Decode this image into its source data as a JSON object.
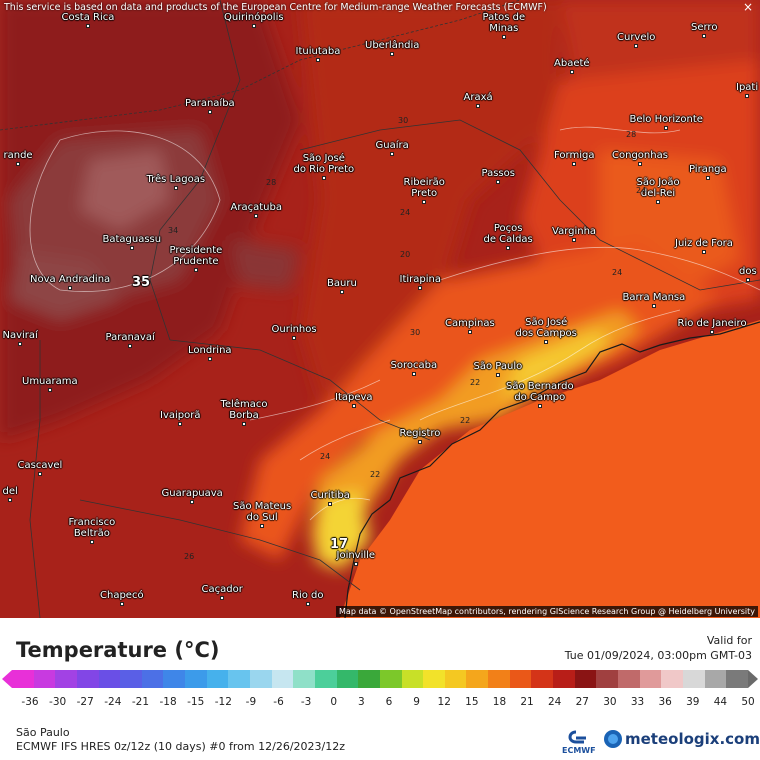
{
  "map": {
    "disclaimer": "This service is based on data and products of the European Centre for Medium-range Weather Forecasts (ECMWF)",
    "close_glyph": "×",
    "attribution": "Map data © OpenStreetMap contributors, rendering GIScience Research Group @ Heidelberg University",
    "cities": [
      {
        "name": "Costa Rica"
      },
      {
        "name": "Quirinópolis"
      },
      {
        "name": "Patos de\nMinas"
      },
      {
        "name": "Curvelo"
      },
      {
        "name": "Serro"
      },
      {
        "name": "Uberlândia"
      },
      {
        "name": "Ituiutaba"
      },
      {
        "name": "Abaeté"
      },
      {
        "name": "Ipati"
      },
      {
        "name": "Paranaíba"
      },
      {
        "name": "Araxá"
      },
      {
        "name": "Belo Horizonte"
      },
      {
        "name": "Guaíra"
      },
      {
        "name": "Formiga"
      },
      {
        "name": "Congonhas"
      },
      {
        "name": "São José\ndo Rio Preto"
      },
      {
        "name": "Passos"
      },
      {
        "name": "Piranga"
      },
      {
        "name": "Três Lagoas"
      },
      {
        "name": "Ribeirão\nPreto"
      },
      {
        "name": "São João\ndel-Rei"
      },
      {
        "name": "Araçatuba"
      },
      {
        "name": "Varginha"
      },
      {
        "name": "Poços\nde Caldas"
      },
      {
        "name": "Juiz de Fora"
      },
      {
        "name": "Bataguassu"
      },
      {
        "name": "Presidente\nPrudente"
      },
      {
        "name": "Nova Andradina"
      },
      {
        "name": "Bauru"
      },
      {
        "name": "Itirapina"
      },
      {
        "name": "Barra Mansa"
      },
      {
        "name": "Campinas"
      },
      {
        "name": "São José\ndos Campos"
      },
      {
        "name": "Rio de Janeiro"
      },
      {
        "name": "Ourinhos"
      },
      {
        "name": "Naviraí"
      },
      {
        "name": "Paranavaí"
      },
      {
        "name": "Londrina"
      },
      {
        "name": "Sorocaba"
      },
      {
        "name": "São Paulo"
      },
      {
        "name": "São Bernardo\ndo Campo"
      },
      {
        "name": "Umuarama"
      },
      {
        "name": "Itapeva"
      },
      {
        "name": "Ivaiporã"
      },
      {
        "name": "Telêmaco\nBorba"
      },
      {
        "name": "Registro"
      },
      {
        "name": "Cascavel"
      },
      {
        "name": "Curitiba"
      },
      {
        "name": "Guarapuava"
      },
      {
        "name": "São Mateus\ndo Sul"
      },
      {
        "name": "Francisco\nBeltrão"
      },
      {
        "name": "Joinville"
      },
      {
        "name": "Caçador"
      },
      {
        "name": "Chapecó"
      },
      {
        "name": "Rio do"
      },
      {
        "name": "rande"
      },
      {
        "name": "del"
      },
      {
        "name": "dos"
      }
    ],
    "temp_labels": [
      {
        "value": "35"
      },
      {
        "value": "17"
      }
    ],
    "contour_labels": [
      "34",
      "30",
      "24",
      "28",
      "24",
      "20",
      "22",
      "22",
      "24",
      "24",
      "28",
      "22",
      "26",
      "30"
    ]
  },
  "footer": {
    "title": "Temperature (°C)",
    "valid_for": "Valid for",
    "valid_date": "Tue 01/09/2024, 03:00pm GMT-03",
    "scale_ticks": [
      "-36",
      "-30",
      "-27",
      "-24",
      "-21",
      "-18",
      "-15",
      "-12",
      "-9",
      "-6",
      "-3",
      "0",
      "3",
      "6",
      "9",
      "12",
      "15",
      "18",
      "21",
      "24",
      "27",
      "30",
      "33",
      "36",
      "39",
      "44",
      "50"
    ],
    "region": "São Paulo",
    "model": "ECMWF IFS HRES 0z/12z (10 days) #0 from  12/26/2023/12z",
    "ecmwf_text": "ECMWF",
    "brand": "meteologix.com"
  },
  "colors": {
    "hot_dark": "#8f1a1a",
    "hot_mid": "#b52a14",
    "warm": "#e2401a",
    "warm_orange": "#f05a18",
    "mild": "#f2a020",
    "cool": "#f6d030",
    "very_hot_pink": "#a85a5a",
    "ocean": "#f55d1c"
  },
  "scale_colors": [
    "#e830d8",
    "#c83ae0",
    "#a242e4",
    "#8246e6",
    "#6a4fe6",
    "#5a5fe6",
    "#4c70e6",
    "#3f86e8",
    "#3c9bea",
    "#46b1ec",
    "#68c4ee",
    "#9ad6ee",
    "#c6e6f0",
    "#8fe0c8",
    "#4ccf9a",
    "#34b86a",
    "#3aa83a",
    "#7cc82a",
    "#c8e028",
    "#f2e22a",
    "#f4c822",
    "#f4a61c",
    "#f28018",
    "#ea5818",
    "#d43418",
    "#b81e18",
    "#8a1414",
    "#a04040",
    "#c06a6a",
    "#e09a9a",
    "#f0c8c8",
    "#d8d8d8",
    "#a8a8a8",
    "#7a7a7a"
  ]
}
